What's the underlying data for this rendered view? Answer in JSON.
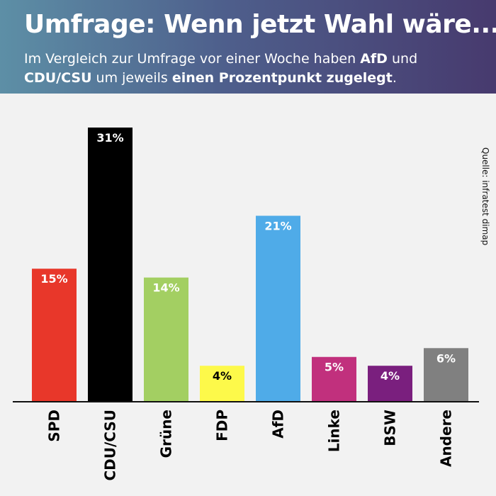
{
  "header": {
    "title": "Umfrage: Wenn jetzt Wahl wäre...",
    "subtitle_parts": [
      {
        "text": "Im Vergleich zur Umfrage vor einer Woche haben ",
        "bold": false
      },
      {
        "text": "AfD",
        "bold": true
      },
      {
        "text": " und ",
        "bold": false
      },
      {
        "text": "CDU/CSU",
        "bold": true
      },
      {
        "text": " um jeweils ",
        "bold": false
      },
      {
        "text": "einen Prozentpunkt zugelegt",
        "bold": true
      },
      {
        "text": ".",
        "bold": false
      }
    ]
  },
  "source": "Quelle: infratest dimap",
  "chart_data": {
    "type": "bar",
    "categories": [
      "SPD",
      "CDU/CSU",
      "Grüne",
      "FDP",
      "AfD",
      "Linke",
      "BSW",
      "Andere"
    ],
    "values": [
      15,
      31,
      14,
      4,
      21,
      5,
      4,
      6
    ],
    "value_labels": [
      "15%",
      "31%",
      "14%",
      "4%",
      "21%",
      "5%",
      "4%",
      "6%"
    ],
    "colors": [
      "#e8372a",
      "#000000",
      "#a3cf62",
      "#fdf94a",
      "#4fabe8",
      "#c1307d",
      "#7a1f7e",
      "#808080"
    ],
    "label_colors": [
      "#ffffff",
      "#ffffff",
      "#ffffff",
      "#000000",
      "#ffffff",
      "#ffffff",
      "#ffffff",
      "#ffffff"
    ],
    "ylim": [
      0,
      31
    ],
    "title": "",
    "xlabel": "",
    "ylabel": "",
    "grid": false,
    "legend": "none"
  }
}
